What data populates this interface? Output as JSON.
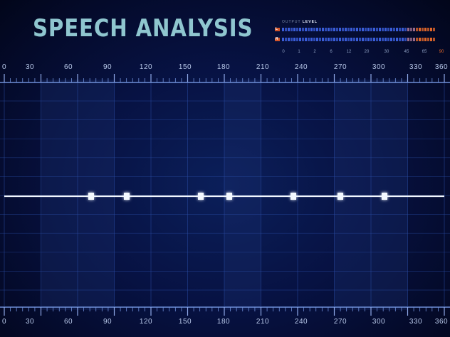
{
  "title": "SPEECH ANALYSIS",
  "output_level": {
    "caption_prefix": "OUTPUT",
    "caption_bold": "LEVEL",
    "channels": [
      "L",
      "R"
    ],
    "scale": [
      "0",
      "1",
      "2",
      "6",
      "12",
      "20",
      "30",
      "45",
      "65",
      "90"
    ]
  },
  "axis": {
    "ticks": [
      "0",
      "30",
      "60",
      "90",
      "120",
      "150",
      "180",
      "210",
      "240",
      "270",
      "300",
      "330",
      "360"
    ],
    "range": [
      0,
      360
    ]
  },
  "colors": {
    "background": "#040a2a",
    "grid": "#2b4ea8",
    "title": "#8fc6cf",
    "wave_core": "#e8f4ff",
    "wave_mid": "#5aa8ff",
    "wave_edge": "#2a56d8",
    "meter_blue": "#3a5dd8",
    "meter_orange": "#e0662a"
  }
}
